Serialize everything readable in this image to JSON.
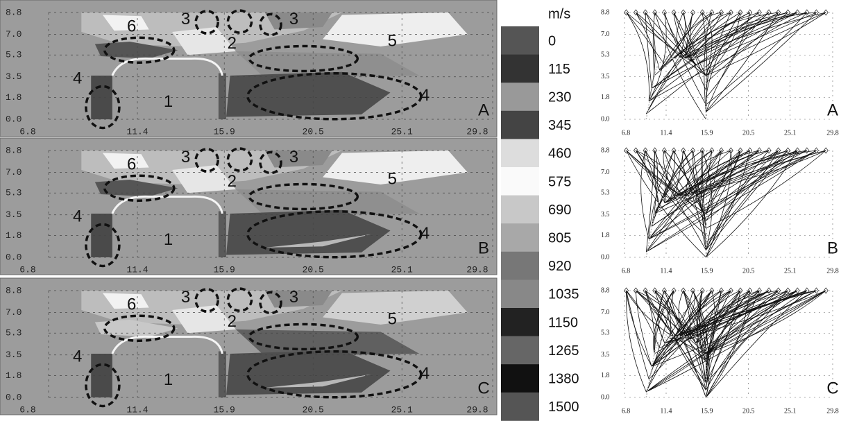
{
  "panels": [
    {
      "label": "A"
    },
    {
      "label": "B"
    },
    {
      "label": "C"
    }
  ],
  "x_ticks": [
    "6.8",
    "11.4",
    "15.9",
    "20.5",
    "25.1",
    "29.8"
  ],
  "y_ticks": [
    "0.0",
    "1.8",
    "3.5",
    "5.3",
    "7.0",
    "8.8"
  ],
  "colorbar": {
    "unit": "m/s",
    "levels": [
      "0",
      "115",
      "230",
      "345",
      "460",
      "575",
      "690",
      "805",
      "920",
      "1035",
      "1150",
      "1265",
      "1380",
      "1500"
    ]
  },
  "region_labels": {
    "r1": "1",
    "r2": "2",
    "r3": "3",
    "r4": "4",
    "r5": "5",
    "r6": "6"
  }
}
